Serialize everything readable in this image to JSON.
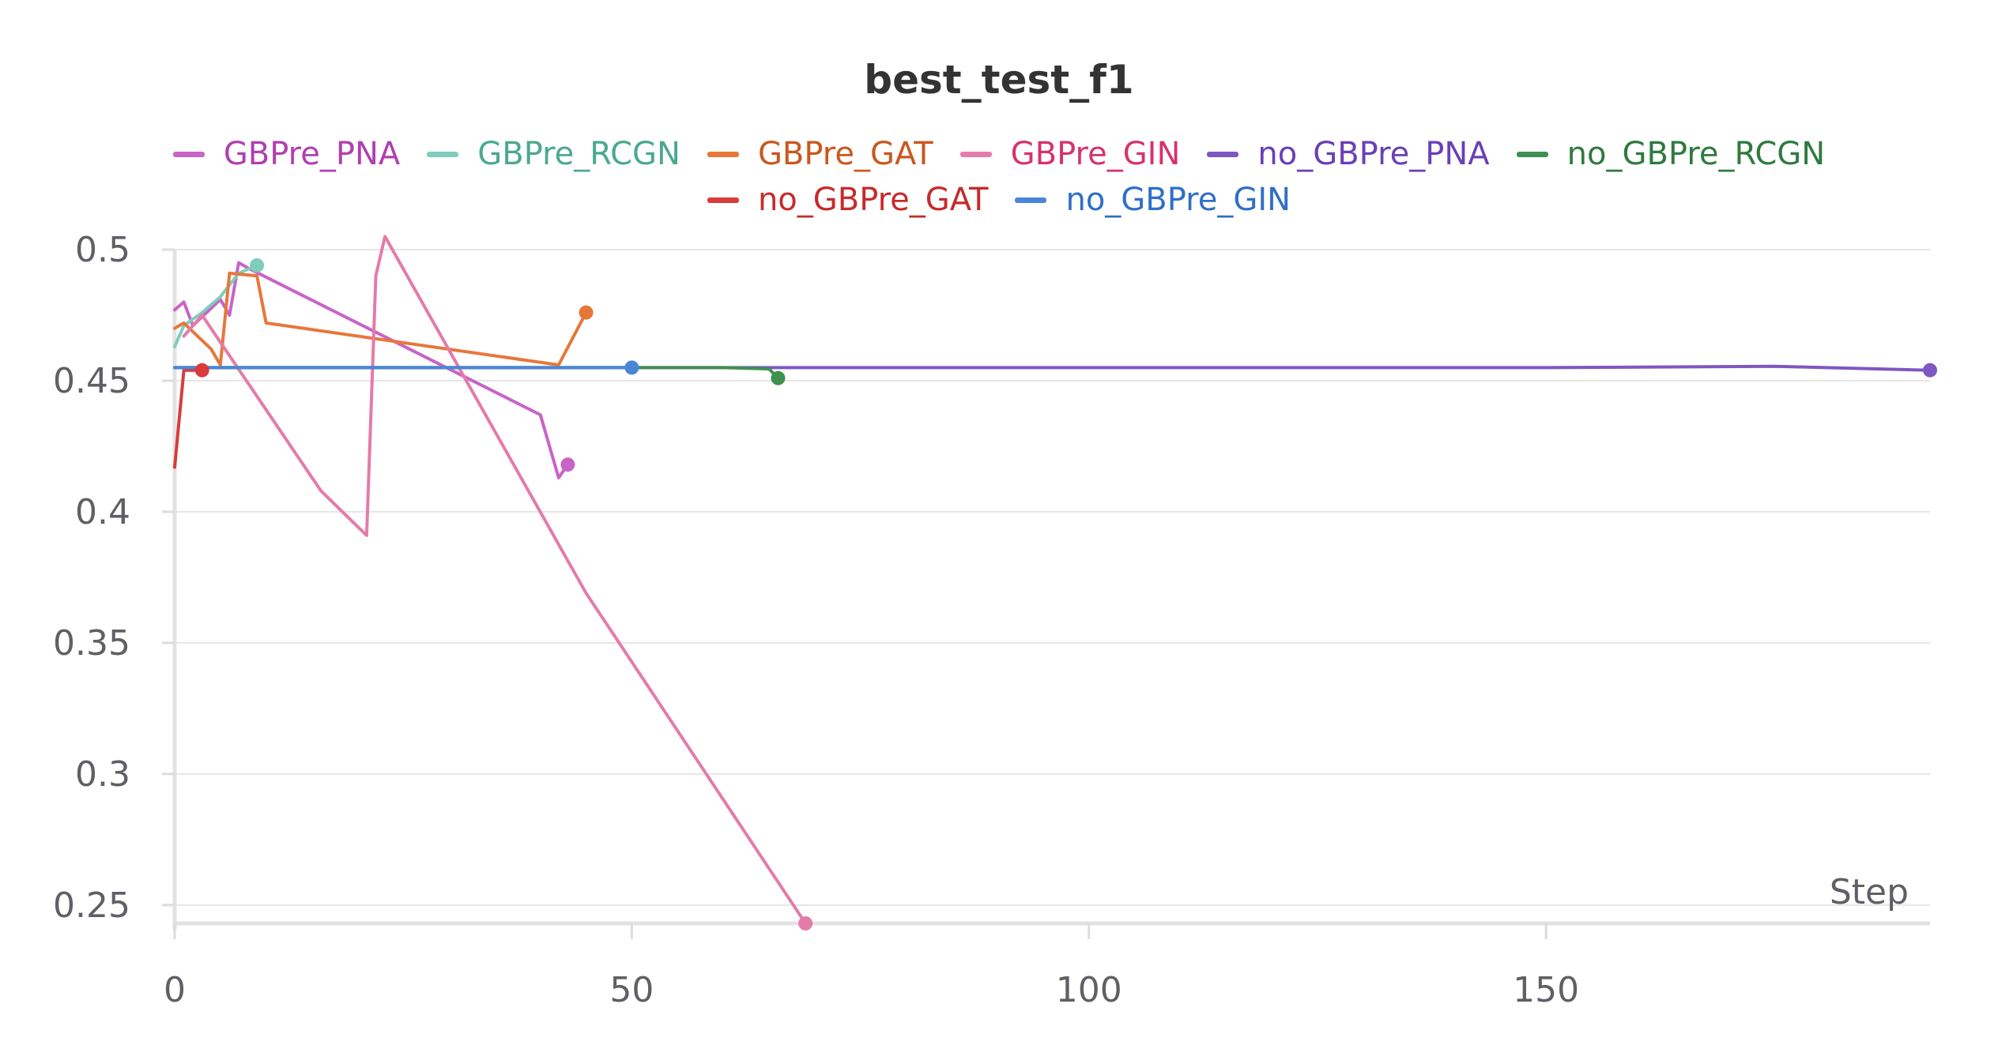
{
  "chart_data": {
    "type": "line",
    "title": "best_test_f1",
    "xlabel": "Step",
    "ylabel": "",
    "xlim": [
      0,
      192
    ],
    "ylim": [
      0.243,
      0.5
    ],
    "x_ticks": [
      0,
      50,
      100,
      150
    ],
    "x_tick_labels": [
      "0",
      "50",
      "100",
      "150"
    ],
    "y_ticks": [
      0.25,
      0.3,
      0.35,
      0.4,
      0.45,
      0.5
    ],
    "y_tick_labels": [
      "0.25",
      "0.3",
      "0.35",
      "0.4",
      "0.45",
      "0.5"
    ],
    "grid": "horizontal",
    "legend_position": "top",
    "series": [
      {
        "name": "GBPre_PNA",
        "color": "#c963c7",
        "text_color": "#b03fb0",
        "points": [
          [
            0,
            0.477
          ],
          [
            1,
            0.48
          ],
          [
            2,
            0.471
          ],
          [
            5,
            0.481
          ],
          [
            6,
            0.475
          ],
          [
            7,
            0.495
          ],
          [
            8,
            0.493
          ],
          [
            40,
            0.437
          ],
          [
            42,
            0.413
          ],
          [
            43,
            0.418
          ]
        ]
      },
      {
        "name": "GBPre_RCGN",
        "color": "#7fcdbb",
        "text_color": "#4aa98f",
        "points": [
          [
            0,
            0.463
          ],
          [
            1,
            0.471
          ],
          [
            3,
            0.476
          ],
          [
            5,
            0.482
          ],
          [
            7,
            0.491
          ],
          [
            9,
            0.494
          ]
        ]
      },
      {
        "name": "GBPre_GAT",
        "color": "#e6773b",
        "text_color": "#c9581e",
        "points": [
          [
            0,
            0.47
          ],
          [
            1,
            0.472
          ],
          [
            4,
            0.462
          ],
          [
            5,
            0.456
          ],
          [
            6,
            0.491
          ],
          [
            9,
            0.49
          ],
          [
            10,
            0.472
          ],
          [
            42,
            0.456
          ],
          [
            45,
            0.476
          ]
        ]
      },
      {
        "name": "GBPre_GIN",
        "color": "#e47ba9",
        "text_color": "#d6336e",
        "points": [
          [
            1,
            0.467
          ],
          [
            3,
            0.475
          ],
          [
            16,
            0.408
          ],
          [
            21,
            0.391
          ],
          [
            22,
            0.49
          ],
          [
            23,
            0.505
          ],
          [
            45,
            0.369
          ],
          [
            69,
            0.243
          ]
        ]
      },
      {
        "name": "no_GBPre_PNA",
        "color": "#7e57c2",
        "text_color": "#6a3fb6",
        "points": [
          [
            0,
            0.455
          ],
          [
            50,
            0.455
          ],
          [
            100,
            0.455
          ],
          [
            150,
            0.455
          ],
          [
            175,
            0.4555
          ],
          [
            192,
            0.454
          ]
        ]
      },
      {
        "name": "no_GBPre_RCGN",
        "color": "#3f9150",
        "text_color": "#2f7a3f",
        "points": [
          [
            0,
            0.455
          ],
          [
            30,
            0.455
          ],
          [
            60,
            0.455
          ],
          [
            65,
            0.4545
          ],
          [
            66,
            0.451
          ]
        ]
      },
      {
        "name": "no_GBPre_GAT",
        "color": "#d93c3c",
        "text_color": "#c72a2a",
        "points": [
          [
            0,
            0.417
          ],
          [
            1,
            0.454
          ],
          [
            2,
            0.454
          ],
          [
            3,
            0.454
          ]
        ]
      },
      {
        "name": "no_GBPre_GIN",
        "color": "#4a86d6",
        "text_color": "#2f6fc7",
        "points": [
          [
            0,
            0.455
          ],
          [
            25,
            0.455
          ],
          [
            50,
            0.455
          ]
        ]
      }
    ]
  }
}
